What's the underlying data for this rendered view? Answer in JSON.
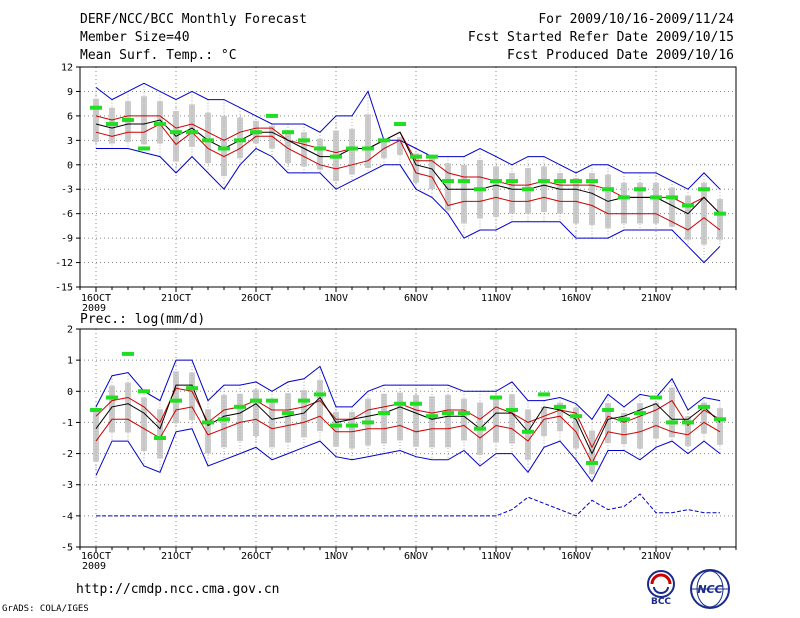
{
  "header": {
    "title": "DERF/NCC/BCC Monthly Forecast",
    "member_size": "Member Size=40",
    "variable": "Mean Surf. Temp.: °C",
    "forecast_period": "For 2009/10/16-2009/11/24",
    "start_date": "Fcst Started Refer Date 2009/10/15",
    "produced_date": "Fcst Produced Date 2009/10/16"
  },
  "footer": {
    "url": "http://cmdp.ncc.cma.gov.cn",
    "software": "GrADS: COLA/IGES"
  },
  "logos": {
    "left_text": "BCC",
    "right_text": "NCC"
  },
  "colors": {
    "envelope": "#0000cc",
    "spread": "#cc0000",
    "mean": "#000000",
    "median": "#22dd22",
    "box": "#cccccc"
  },
  "chart_data": [
    {
      "type": "line",
      "title": "Mean Surf. Temp.: °C",
      "ylim": [
        -15,
        12
      ],
      "yticks": [
        12,
        9,
        6,
        3,
        0,
        -3,
        -6,
        -9,
        -12,
        -15
      ],
      "x_tick_labels": [
        "16OCT",
        "21OCT",
        "26OCT",
        "1NOV",
        "6NOV",
        "11NOV",
        "16NOV",
        "21NOV"
      ],
      "x_year_label": "2009",
      "days": 40,
      "series": [
        {
          "name": "max",
          "values": [
            9.5,
            8,
            9,
            10,
            9,
            8,
            9,
            8,
            8,
            7,
            6,
            5,
            5,
            5,
            4,
            6,
            6,
            9,
            3,
            3,
            2,
            1,
            1,
            1,
            2,
            1,
            0,
            1,
            1,
            0,
            -1,
            0,
            0,
            -1,
            -1,
            -1,
            -2,
            -3,
            -1,
            -3
          ]
        },
        {
          "name": "upper",
          "values": [
            6,
            5.5,
            6,
            6,
            6,
            4.5,
            5,
            4,
            3,
            4,
            4.5,
            4.5,
            3,
            2.5,
            2,
            1.5,
            2,
            2,
            3,
            4,
            0.5,
            0.5,
            -1,
            -1.5,
            -1.5,
            -2,
            -2.5,
            -2.5,
            -2,
            -2.5,
            -2.5,
            -2.5,
            -3,
            -4,
            -4,
            -4,
            -4,
            -5,
            -4,
            -6
          ]
        },
        {
          "name": "mean",
          "values": [
            5,
            4.5,
            5,
            5,
            5.5,
            3.5,
            4.5,
            3,
            2,
            3,
            4,
            4,
            3,
            2,
            1,
            1,
            2,
            2,
            3,
            4,
            0,
            -0.5,
            -3,
            -3,
            -3,
            -2.5,
            -3,
            -3,
            -2.5,
            -3,
            -3,
            -3.5,
            -4.5,
            -4,
            -4,
            -4,
            -5,
            -6,
            -4,
            -6
          ]
        },
        {
          "name": "lower",
          "values": [
            4,
            3.5,
            4,
            4,
            5,
            2.5,
            4,
            2,
            1,
            2,
            3.5,
            3.5,
            2,
            1,
            0,
            -0.5,
            0,
            0.5,
            2,
            3,
            -1,
            -1.5,
            -5,
            -4.5,
            -4.5,
            -4,
            -4.5,
            -4.5,
            -4,
            -4.5,
            -4.5,
            -5,
            -6,
            -6,
            -6,
            -6,
            -7,
            -8,
            -6.5,
            -8
          ]
        },
        {
          "name": "min",
          "values": [
            2,
            2,
            2,
            1.5,
            1,
            -1,
            1,
            -1,
            -3,
            0,
            2,
            1,
            -1,
            -1,
            -1,
            -3,
            -2,
            -1,
            0,
            0,
            -3,
            -4,
            -6,
            -9,
            -8,
            -8,
            -7,
            -7,
            -7,
            -7,
            -9,
            -9,
            -9,
            -8,
            -8,
            -8,
            -8,
            -10,
            -12,
            -10
          ]
        },
        {
          "name": "median",
          "values": [
            7,
            5,
            5.5,
            2,
            5,
            4,
            4,
            3,
            2,
            3,
            4,
            6,
            4,
            3,
            2,
            1,
            2,
            2,
            3,
            5,
            1,
            1,
            -2,
            -2,
            -3,
            -2,
            -2,
            -3,
            -2,
            -2,
            -2,
            -2,
            -3,
            -4,
            -3,
            -4,
            -4,
            -5,
            -3,
            -6
          ]
        }
      ]
    },
    {
      "type": "line",
      "title": "Prec.: log(mm/d)",
      "ylim": [
        -5,
        2
      ],
      "yticks": [
        2,
        1,
        0,
        -1,
        -2,
        -3,
        -4,
        -5
      ],
      "x_tick_labels": [
        "16OCT",
        "21OCT",
        "26OCT",
        "1NOV",
        "6NOV",
        "11NOV",
        "16NOV",
        "21NOV"
      ],
      "x_year_label": "2009",
      "days": 40,
      "series": [
        {
          "name": "max",
          "values": [
            -0.5,
            0.5,
            0.6,
            0,
            -0.3,
            1,
            1,
            -0.3,
            0.2,
            0.2,
            0.3,
            0,
            0.3,
            0.4,
            0.8,
            -0.5,
            -0.5,
            0,
            0.2,
            0.2,
            0.2,
            0.2,
            0.2,
            0,
            0,
            0,
            0.3,
            -0.3,
            -0.3,
            -0.2,
            -0.4,
            -0.9,
            -0.1,
            -0.5,
            -0.1,
            -0.2,
            0.4,
            -0.6,
            -0.2,
            -0.3
          ]
        },
        {
          "name": "upper",
          "values": [
            -0.8,
            -0.3,
            -0.2,
            -0.5,
            -1,
            0.1,
            0,
            -1,
            -0.6,
            -0.5,
            -0.3,
            -0.6,
            -0.6,
            -0.5,
            -0.3,
            -0.9,
            -0.9,
            -0.6,
            -0.5,
            -0.4,
            -0.6,
            -0.7,
            -0.6,
            -0.6,
            -0.9,
            -0.5,
            -0.7,
            -1,
            -0.8,
            -0.6,
            -0.7,
            -1.8,
            -0.8,
            -1,
            -0.8,
            -0.6,
            -0.3,
            -1.1,
            -0.6,
            -0.9
          ]
        },
        {
          "name": "mean",
          "values": [
            -1.2,
            -0.5,
            -0.4,
            -0.7,
            -1.2,
            0.2,
            0.2,
            -1.1,
            -0.8,
            -0.7,
            -0.4,
            -0.9,
            -0.8,
            -0.7,
            -0.2,
            -1,
            -0.9,
            -0.8,
            -0.7,
            -0.5,
            -0.7,
            -0.9,
            -0.8,
            -0.8,
            -1.2,
            -0.7,
            -0.7,
            -1.3,
            -0.5,
            -0.6,
            -0.9,
            -2,
            -0.9,
            -0.8,
            -0.6,
            -0.4,
            -0.9,
            -0.9,
            -0.5,
            -1
          ]
        },
        {
          "name": "lower",
          "values": [
            -1.6,
            -0.9,
            -0.9,
            -1.2,
            -1.5,
            -0.6,
            -0.5,
            -1.4,
            -1.2,
            -1,
            -0.9,
            -1.2,
            -1.1,
            -1,
            -0.8,
            -1.3,
            -1.3,
            -1.2,
            -1.2,
            -1.1,
            -1.3,
            -1.2,
            -1.2,
            -1.1,
            -1.5,
            -1.1,
            -1.2,
            -1.6,
            -0.9,
            -0.8,
            -1.3,
            -2.3,
            -1.3,
            -1.4,
            -1.3,
            -1.1,
            -1.3,
            -1.4,
            -1,
            -1.3
          ]
        },
        {
          "name": "min",
          "values": [
            -2.7,
            -1.6,
            -1.6,
            -2.4,
            -2.6,
            -1.3,
            -1.2,
            -2.4,
            -2.2,
            -2,
            -1.8,
            -2.2,
            -2,
            -1.8,
            -1.6,
            -2.1,
            -2.2,
            -2.1,
            -2,
            -1.9,
            -2.1,
            -2.2,
            -2.2,
            -1.9,
            -2.4,
            -2,
            -2,
            -2.6,
            -1.8,
            -1.6,
            -2.2,
            -2.9,
            -1.9,
            -1.9,
            -2.2,
            -1.8,
            -1.6,
            -2,
            -1.6,
            -2
          ]
        },
        {
          "name": "floor",
          "values": [
            -4,
            -4,
            -4,
            -4,
            -4,
            -4,
            -4,
            -4,
            -4,
            -4,
            -4,
            -4,
            -4,
            -4,
            -4,
            -4,
            -4,
            -4,
            -4,
            -4,
            -4,
            -4,
            -4,
            -4,
            -4,
            -4,
            -3.8,
            -3.4,
            -3.6,
            -3.8,
            -4,
            -3.5,
            -3.8,
            -3.7,
            -3.3,
            -3.9,
            -3.9,
            -3.8,
            -3.9,
            -3.9
          ]
        },
        {
          "name": "median",
          "values": [
            -0.6,
            -0.2,
            1.2,
            0,
            -1.5,
            -0.3,
            0.1,
            -1,
            -0.9,
            -0.5,
            -0.3,
            -0.3,
            -0.7,
            -0.3,
            -0.1,
            -1.1,
            -1.1,
            -1,
            -0.7,
            -0.4,
            -0.4,
            -0.8,
            -0.7,
            -0.7,
            -1.2,
            -0.2,
            -0.6,
            -1.3,
            -0.1,
            -0.5,
            -0.8,
            -2.3,
            -0.6,
            -0.9,
            -0.7,
            -0.2,
            -1,
            -1,
            -0.5,
            -0.9
          ]
        }
      ]
    }
  ]
}
